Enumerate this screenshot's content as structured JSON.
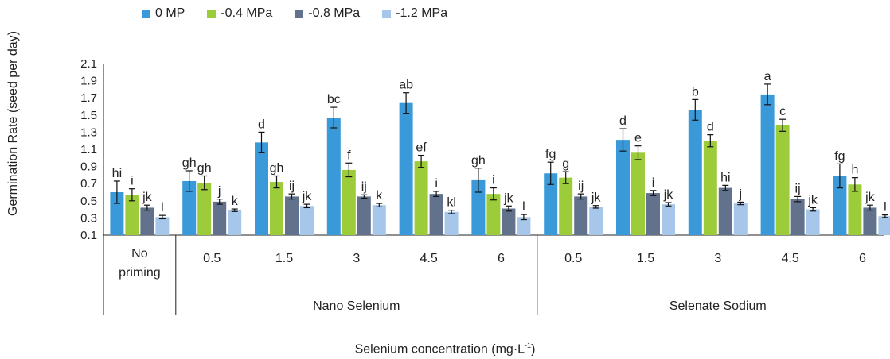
{
  "chart_data": {
    "type": "bar",
    "ylabel": "Germination Rate (seed per day)",
    "xlabel": "Selenium concentration (mg·L",
    "xlabel_sup": "-1",
    "xlabel_close": ")",
    "ylim": [
      0.1,
      2.1
    ],
    "yticks": [
      "2.1",
      "1.9",
      "1.7",
      "1.5",
      "1.3",
      "1.1",
      "0.9",
      "0.7",
      "0.5",
      "0.3",
      "0.1"
    ],
    "series_colors": [
      "#3a9ad9",
      "#9dcc3b",
      "#62718c",
      "#a7c7ea"
    ],
    "series": [
      {
        "name": "0 MP"
      },
      {
        "name": "-0.4 MPa"
      },
      {
        "name": "-0.8 MPa"
      },
      {
        "name": "-1.2 MPa"
      }
    ],
    "groups": [
      {
        "label": "No priming",
        "label_lines": [
          "No",
          "priming"
        ],
        "values": [
          0.6,
          0.57,
          0.42,
          0.31
        ],
        "errors": [
          0.13,
          0.07,
          0.03,
          0.02
        ],
        "letters": [
          "hi",
          "i",
          "jk",
          "l"
        ]
      },
      {
        "label": "0.5",
        "values": [
          0.73,
          0.71,
          0.49,
          0.39
        ],
        "errors": [
          0.12,
          0.08,
          0.03,
          0.015
        ],
        "letters": [
          "gh",
          "gh",
          "j",
          "k"
        ]
      },
      {
        "label": "1.5",
        "values": [
          1.18,
          0.72,
          0.55,
          0.44
        ],
        "errors": [
          0.12,
          0.07,
          0.03,
          0.02
        ],
        "letters": [
          "d",
          "gh",
          "ij",
          "jk"
        ]
      },
      {
        "label": "3",
        "values": [
          1.47,
          0.86,
          0.55,
          0.45
        ],
        "errors": [
          0.12,
          0.08,
          0.02,
          0.02
        ],
        "letters": [
          "bc",
          "f",
          "ij",
          "k"
        ]
      },
      {
        "label": "4.5",
        "values": [
          1.64,
          0.96,
          0.58,
          0.37
        ],
        "errors": [
          0.12,
          0.07,
          0.03,
          0.02
        ],
        "letters": [
          "ab",
          "ef",
          "i",
          "kl"
        ]
      },
      {
        "label": "6",
        "values": [
          0.74,
          0.58,
          0.41,
          0.31
        ],
        "errors": [
          0.14,
          0.07,
          0.03,
          0.03
        ],
        "letters": [
          "gh",
          "i",
          "jk",
          "l"
        ]
      },
      {
        "label": "0.5",
        "values": [
          0.82,
          0.77,
          0.55,
          0.43
        ],
        "errors": [
          0.13,
          0.07,
          0.03,
          0.015
        ],
        "letters": [
          "fg",
          "g",
          "ij",
          "jk"
        ]
      },
      {
        "label": "1.5",
        "values": [
          1.21,
          1.06,
          0.59,
          0.46
        ],
        "errors": [
          0.13,
          0.08,
          0.03,
          0.02
        ],
        "letters": [
          "d",
          "e",
          "i",
          "jk"
        ]
      },
      {
        "label": "3",
        "values": [
          1.56,
          1.2,
          0.65,
          0.47
        ],
        "errors": [
          0.12,
          0.07,
          0.03,
          0.015
        ],
        "letters": [
          "b",
          "d",
          "hi",
          "j"
        ]
      },
      {
        "label": "4.5",
        "values": [
          1.74,
          1.38,
          0.52,
          0.4
        ],
        "errors": [
          0.12,
          0.07,
          0.03,
          0.02
        ],
        "letters": [
          "a",
          "c",
          "ij",
          "jk"
        ]
      },
      {
        "label": "6",
        "values": [
          0.79,
          0.69,
          0.42,
          0.32
        ],
        "errors": [
          0.14,
          0.08,
          0.03,
          0.015
        ],
        "letters": [
          "fg",
          "h",
          "jk",
          "l"
        ]
      }
    ],
    "sections": [
      {
        "label": "Nano Selenium"
      },
      {
        "label": "Selenate Sodium"
      }
    ],
    "legend": "top-left",
    "grid": false
  }
}
